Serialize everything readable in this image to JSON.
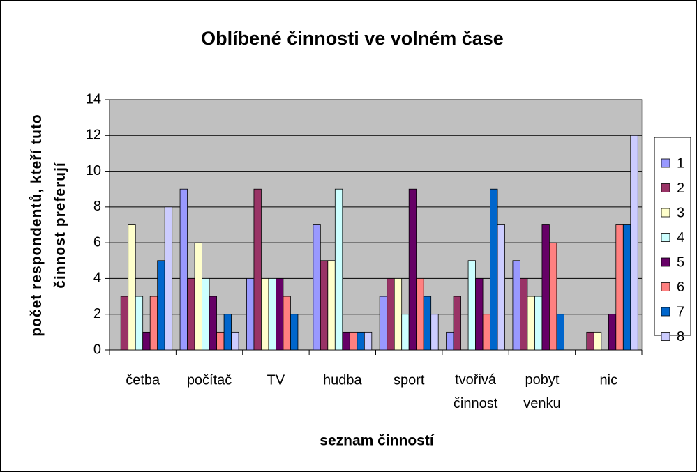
{
  "chart_data": {
    "type": "bar",
    "title": "Oblíbené činnosti ve volném čase",
    "ylabel": "počet respondentů, kteří tuto činnost preferují",
    "xlabel": "seznam činností",
    "categories": [
      "četba",
      "počítač",
      "TV",
      "hudba",
      "sport",
      "tvořivá činnost",
      "pobyt venku",
      "nic"
    ],
    "series": [
      {
        "name": "1",
        "color": "#9999ff",
        "values": [
          0,
          9,
          4,
          7,
          3,
          1,
          5,
          0
        ]
      },
      {
        "name": "2",
        "color": "#993366",
        "values": [
          3,
          4,
          9,
          5,
          4,
          3,
          4,
          1
        ]
      },
      {
        "name": "3",
        "color": "#ffffcc",
        "values": [
          7,
          6,
          4,
          5,
          4,
          0,
          3,
          1
        ]
      },
      {
        "name": "4",
        "color": "#ccffff",
        "values": [
          3,
          4,
          4,
          9,
          2,
          5,
          3,
          0
        ]
      },
      {
        "name": "5",
        "color": "#660066",
        "values": [
          1,
          3,
          4,
          1,
          9,
          4,
          7,
          2
        ]
      },
      {
        "name": "6",
        "color": "#ff8080",
        "values": [
          3,
          1,
          3,
          1,
          4,
          2,
          6,
          7
        ]
      },
      {
        "name": "7",
        "color": "#0066cc",
        "values": [
          5,
          2,
          2,
          1,
          3,
          9,
          2,
          7
        ]
      },
      {
        "name": "8",
        "color": "#ccccff",
        "values": [
          8,
          1,
          0,
          1,
          2,
          7,
          0,
          12
        ]
      }
    ],
    "ylim": [
      0,
      14
    ],
    "yticks": [
      0,
      2,
      4,
      6,
      8,
      10,
      12,
      14
    ],
    "grid": true,
    "legend": "right"
  }
}
